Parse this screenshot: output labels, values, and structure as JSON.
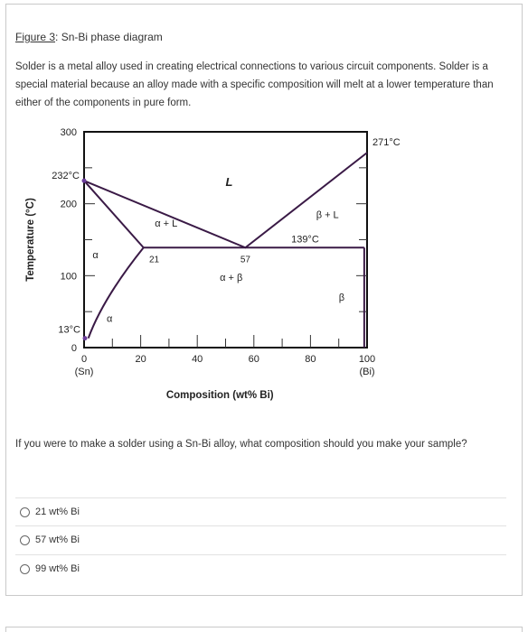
{
  "heading": {
    "figure_label": "Figure 3",
    "separator": ":",
    "title": "Sn-Bi phase diagram"
  },
  "intro": "Solder is a metal alloy used in creating electrical connections to various circuit components. Solder is a special material because an alloy made with a specific composition will melt at a lower temperature than either of the components in pure form.",
  "chart_data": {
    "type": "phase-diagram",
    "ylabel": "Temperature (°C)",
    "xlabel": "Composition (wt% Bi)",
    "x_ticks": [
      "0",
      "20",
      "40",
      "60",
      "80",
      "100"
    ],
    "x_tick_subs": [
      "(Sn)",
      "",
      "",
      "",
      "",
      "(Bi)"
    ],
    "y_ticks": [
      "0",
      "100",
      "200",
      "300"
    ],
    "xlim": [
      0,
      100
    ],
    "ylim": [
      0,
      300
    ],
    "melting_points": [
      {
        "component": "Sn",
        "x": 0,
        "temperature": 232,
        "label": "232°C"
      },
      {
        "component": "Bi",
        "x": 100,
        "temperature": 271,
        "label": "271°C"
      }
    ],
    "eutectic": {
      "temperature": 139,
      "label": "139°C",
      "compositions": [
        21,
        57,
        99
      ],
      "composition_labels": [
        "21",
        "57"
      ]
    },
    "solubility_min": {
      "temperature": 13,
      "label": "13°C"
    },
    "liquidus": [
      [
        0,
        232
      ],
      [
        57,
        139
      ],
      [
        100,
        271
      ]
    ],
    "solidus": [
      [
        0,
        232
      ],
      [
        21,
        139
      ]
    ],
    "solvus": [
      [
        21,
        139
      ],
      [
        9,
        80
      ],
      [
        4,
        40
      ],
      [
        1.5,
        13
      ]
    ],
    "beta_line": [
      [
        99,
        139
      ],
      [
        99,
        0
      ]
    ],
    "regions": {
      "L": "L",
      "alpha_L": "α + L",
      "beta_L": "β + L",
      "alpha_beta": "α + β",
      "alpha": "α",
      "beta": "β"
    }
  },
  "question": "If you were to make a solder using a Sn-Bi alloy, what composition should you make your sample?",
  "options": [
    "21 wt% Bi",
    "57 wt% Bi",
    "99 wt% Bi"
  ]
}
